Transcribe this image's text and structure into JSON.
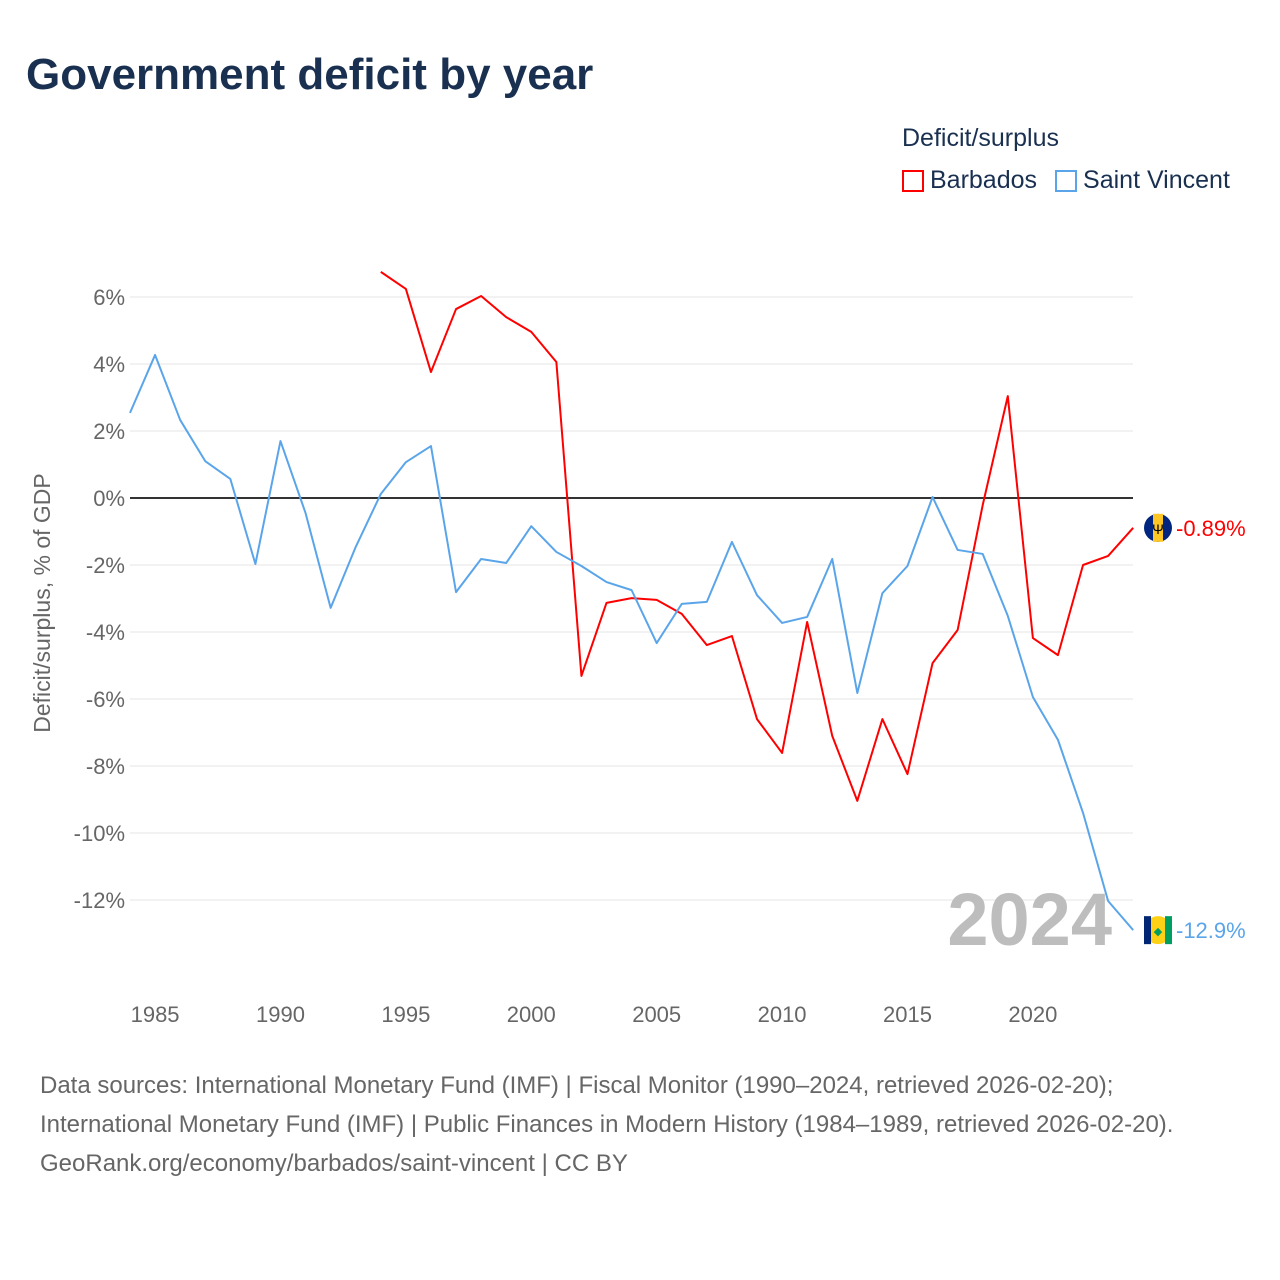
{
  "title": "Government deficit by year",
  "legend_title": "Deficit/surplus",
  "colors": {
    "Barbados": "#ff0000",
    "Saint Vincent": "#5aa5ea"
  },
  "chart_data": {
    "type": "line",
    "title": "Government deficit by year",
    "xlabel": "",
    "ylabel": "Deficit/surplus, % of GDP",
    "xlim": [
      1984,
      2024
    ],
    "ylim": [
      -13.5,
      7
    ],
    "yticks": [
      6,
      4,
      2,
      0,
      -2,
      -4,
      -6,
      -8,
      -10,
      -12
    ],
    "ytick_labels": [
      "6%",
      "4%",
      "2%",
      "0%",
      "-2%",
      "-4%",
      "-6%",
      "-8%",
      "-10%",
      "-12%"
    ],
    "xticks": [
      1985,
      1990,
      1995,
      2000,
      2005,
      2010,
      2015,
      2020
    ],
    "xtick_labels": [
      "1985",
      "1990",
      "1995",
      "2000",
      "2005",
      "2010",
      "2015",
      "2020"
    ],
    "grid": true,
    "legend_position": "top-right",
    "year_watermark": "2024",
    "series": [
      {
        "name": "Barbados",
        "end_label": "-0.89%",
        "start_year": 1994,
        "values": [
          6.75,
          6.24,
          3.76,
          5.64,
          6.03,
          5.4,
          4.96,
          4.06,
          -5.31,
          -3.13,
          -2.99,
          -3.04,
          -3.46,
          -4.39,
          -4.12,
          -6.6,
          -7.61,
          -3.7,
          -7.1,
          -9.04,
          -6.6,
          -8.24,
          -4.93,
          -3.94,
          -0.21,
          3.04,
          -4.18,
          -4.69,
          -2.0,
          -1.73,
          -0.89
        ]
      },
      {
        "name": "Saint Vincent",
        "end_label": "-12.9%",
        "start_year": 1984,
        "values": [
          2.54,
          4.27,
          2.33,
          1.1,
          0.57,
          -1.97,
          1.7,
          -0.45,
          -3.28,
          -1.46,
          0.12,
          1.07,
          1.55,
          -2.81,
          -1.82,
          -1.94,
          -0.84,
          -1.61,
          -2.03,
          -2.51,
          -2.75,
          -4.33,
          -3.16,
          -3.1,
          -1.31,
          -2.9,
          -3.73,
          -3.55,
          -1.82,
          -5.82,
          -2.84,
          -2.03,
          0.03,
          -1.55,
          -1.67,
          -3.52,
          -5.94,
          -7.22,
          -9.4,
          -12.03,
          -12.9
        ]
      }
    ]
  },
  "footer": {
    "sources": "Data sources: International Monetary Fund (IMF) | Fiscal Monitor (1990–2024, retrieved 2026-02-20); International Monetary Fund (IMF) | Public Finances in Modern History (1984–1989, retrieved 2026-02-20).",
    "credit": "GeoRank.org/economy/barbados/saint-vincent | CC BY"
  }
}
